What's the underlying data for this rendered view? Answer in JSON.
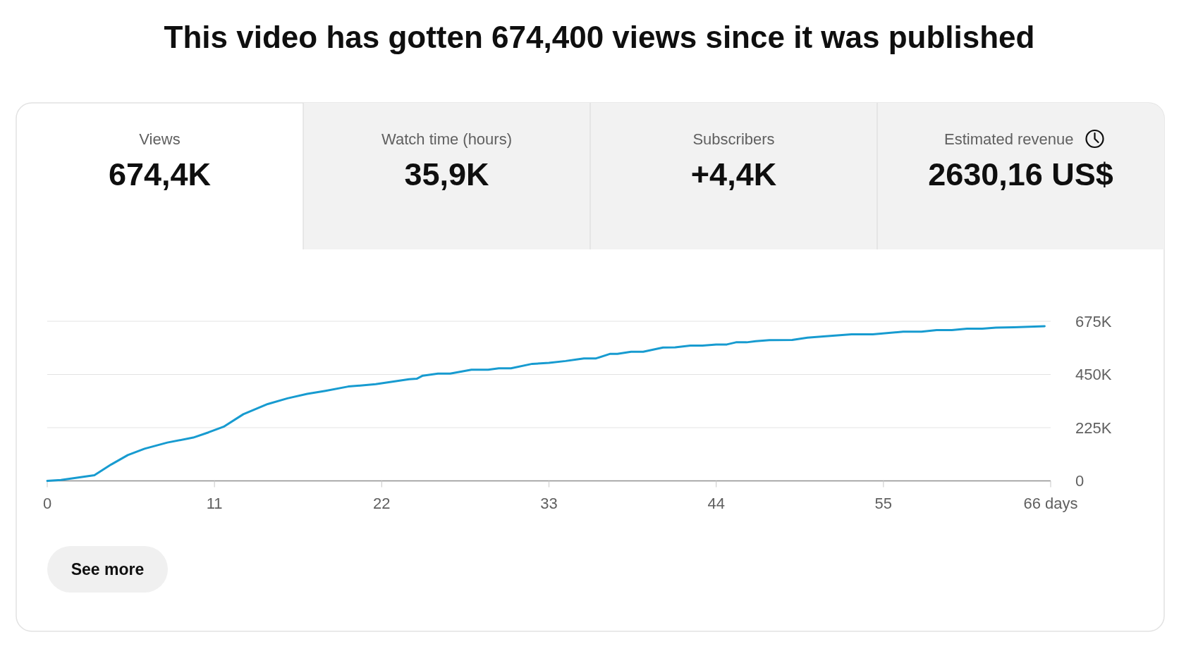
{
  "chart_data": [
    {
      "type": "other",
      "title": "This video has gotten 674,400 views since it was published",
      "annotations": [
        "Views",
        "674,4K",
        "Watch time (hours)",
        "35,9K",
        "Subscribers",
        "+4,4K",
        "Estimated revenue",
        "2630,16 US$"
      ]
    },
    {
      "type": "line",
      "x": [
        0,
        0.9,
        3.1,
        4.2,
        5.3,
        6.4,
        7.9,
        9.6,
        10.6,
        11.6,
        12.9,
        14.5,
        15.8,
        17.1,
        18.3,
        19.8,
        21.6,
        23.8,
        24.3,
        24.7,
        25.7,
        26.5,
        27.9,
        29.0,
        29.7,
        30.5,
        31.9,
        33.0,
        34.1,
        35.3,
        36.1,
        37.0,
        37.5,
        38.4,
        39.2,
        40.5,
        41.3,
        42.3,
        43.1,
        44.0,
        44.7,
        45.3,
        46.0,
        46.6,
        47.5,
        49.0,
        50.0,
        51.2,
        52.9,
        54.3,
        56.3,
        57.5,
        58.5,
        59.5,
        60.5,
        61.5,
        62.4,
        63.6,
        65.6
      ],
      "series": [
        {
          "color": "#179bd0",
          "values": [
            0,
            4000,
            24000,
            69000,
            109000,
            136000,
            162000,
            183000,
            205000,
            229000,
            282000,
            325000,
            349000,
            368000,
            381000,
            399000,
            409000,
            430000,
            432000,
            445000,
            454000,
            454000,
            470000,
            470000,
            476000,
            476000,
            495000,
            499000,
            507000,
            518000,
            518000,
            537000,
            537000,
            546000,
            546000,
            564000,
            565000,
            572000,
            572000,
            577000,
            577000,
            586000,
            586000,
            591000,
            595000,
            596000,
            606000,
            612000,
            620000,
            620000,
            631000,
            631000,
            638000,
            638000,
            644000,
            644000,
            648000,
            650000,
            654000
          ]
        }
      ],
      "xlim": [
        0,
        66
      ],
      "ylim": [
        0,
        675000
      ],
      "xticks": [
        0,
        11,
        22,
        33,
        44,
        55,
        {
          "value": 66,
          "label": "66 days"
        }
      ],
      "yticks": [
        0,
        {
          "value": 225000,
          "label": "225K"
        },
        {
          "value": 450000,
          "label": "450K"
        },
        {
          "value": 675000,
          "label": "675K"
        }
      ],
      "grid": "y",
      "annotations": [
        "See more"
      ]
    }
  ]
}
